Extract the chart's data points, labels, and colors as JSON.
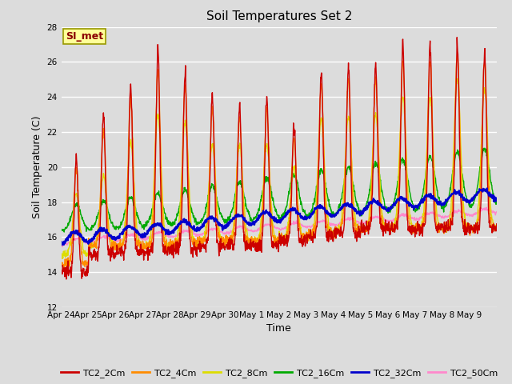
{
  "title": "Soil Temperatures Set 2",
  "xlabel": "Time",
  "ylabel": "Soil Temperature (C)",
  "ylim": [
    12,
    28
  ],
  "yticks": [
    12,
    14,
    16,
    18,
    20,
    22,
    24,
    26,
    28
  ],
  "annotation_text": "SI_met",
  "annotation_color": "#8B0000",
  "annotation_bg": "#FFFF99",
  "annotation_edge": "#999900",
  "bg_color": "#DCDCDC",
  "series_colors": {
    "TC2_2Cm": "#CC0000",
    "TC2_4Cm": "#FF8C00",
    "TC2_8Cm": "#DDDD00",
    "TC2_16Cm": "#00AA00",
    "TC2_32Cm": "#0000CC",
    "TC2_50Cm": "#FF88CC"
  },
  "xtick_labels": [
    "Apr 24",
    "Apr 25",
    "Apr 26",
    "Apr 27",
    "Apr 28",
    "Apr 29",
    "Apr 30",
    "May 1",
    "May 2",
    "May 3",
    "May 4",
    "May 5",
    "May 6",
    "May 7",
    "May 8",
    "May 9"
  ],
  "num_points": 1440
}
